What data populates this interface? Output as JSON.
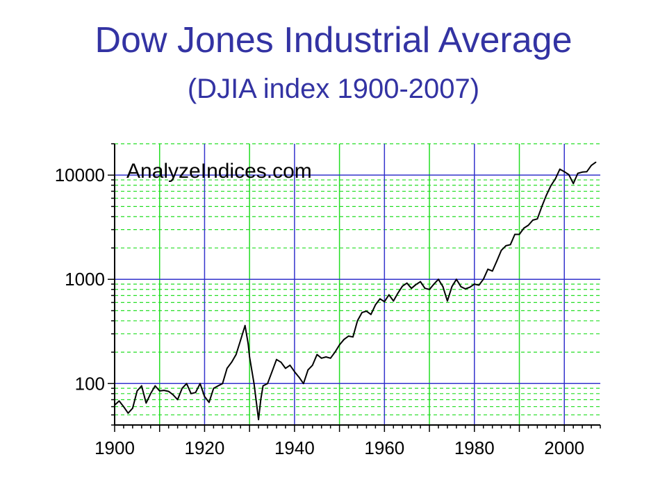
{
  "title": "Dow Jones Industrial Average",
  "subtitle": "(DJIA index 1900-2007)",
  "watermark": "AnalyzeIndices.com",
  "colors": {
    "title": "#3333a3",
    "major_grid": "#3333cc",
    "minor_grid": "#22dd22",
    "line": "#000000"
  },
  "chart_data": {
    "type": "line",
    "title": "Dow Jones Industrial Average",
    "subtitle": "(DJIA index 1900-2007)",
    "xlabel": "",
    "ylabel": "",
    "y_scale": "log",
    "xlim": [
      1900,
      2008
    ],
    "ylim": [
      40,
      20000
    ],
    "x_ticks": [
      1900,
      1920,
      1940,
      1960,
      1980,
      2000
    ],
    "x_tick_labels": [
      "1900",
      "1920",
      "1940",
      "1960",
      "1980",
      "2000"
    ],
    "y_ticks": [
      100,
      1000,
      10000
    ],
    "y_tick_labels": [
      "100",
      "1000",
      "10000"
    ],
    "grid": true,
    "series": [
      {
        "x": [
          1900,
          1901,
          1902,
          1903,
          1904,
          1905,
          1906,
          1907,
          1908,
          1909,
          1910,
          1911,
          1912,
          1913,
          1914,
          1915,
          1916,
          1917,
          1918,
          1919,
          1920,
          1921,
          1922,
          1923,
          1924,
          1925,
          1926,
          1927,
          1928,
          1929,
          1929.7,
          1930,
          1931,
          1932,
          1932.5,
          1933,
          1934,
          1935,
          1936,
          1937,
          1938,
          1939,
          1940,
          1941,
          1942,
          1943,
          1944,
          1945,
          1946,
          1947,
          1948,
          1949,
          1950,
          1951,
          1952,
          1953,
          1954,
          1955,
          1956,
          1957,
          1958,
          1959,
          1960,
          1961,
          1962,
          1963,
          1964,
          1965,
          1966,
          1967,
          1968,
          1969,
          1970,
          1971,
          1972,
          1973,
          1974,
          1975,
          1976,
          1977,
          1978,
          1979,
          1980,
          1981,
          1982,
          1983,
          1984,
          1985,
          1986,
          1987,
          1988,
          1989,
          1990,
          1991,
          1992,
          1993,
          1994,
          1995,
          1996,
          1997,
          1998,
          1999,
          2000,
          2001,
          2002,
          2003,
          2004,
          2005,
          2006,
          2007
        ],
        "values": [
          62,
          68,
          60,
          52,
          58,
          85,
          95,
          65,
          80,
          95,
          85,
          86,
          84,
          78,
          70,
          90,
          100,
          80,
          82,
          100,
          75,
          66,
          90,
          95,
          100,
          140,
          160,
          190,
          260,
          360,
          240,
          180,
          100,
          45,
          70,
          95,
          100,
          130,
          170,
          160,
          140,
          150,
          130,
          115,
          100,
          135,
          150,
          190,
          175,
          180,
          175,
          200,
          235,
          265,
          285,
          280,
          400,
          480,
          495,
          460,
          570,
          650,
          610,
          710,
          620,
          740,
          860,
          920,
          820,
          890,
          950,
          820,
          800,
          900,
          1000,
          850,
          620,
          850,
          1000,
          850,
          810,
          840,
          900,
          880,
          1000,
          1250,
          1200,
          1500,
          1900,
          2100,
          2150,
          2700,
          2700,
          3100,
          3300,
          3700,
          3800,
          5000,
          6400,
          7900,
          9200,
          11400,
          10800,
          10100,
          8300,
          10400,
          10700,
          10800,
          12400,
          13300
        ]
      }
    ]
  }
}
